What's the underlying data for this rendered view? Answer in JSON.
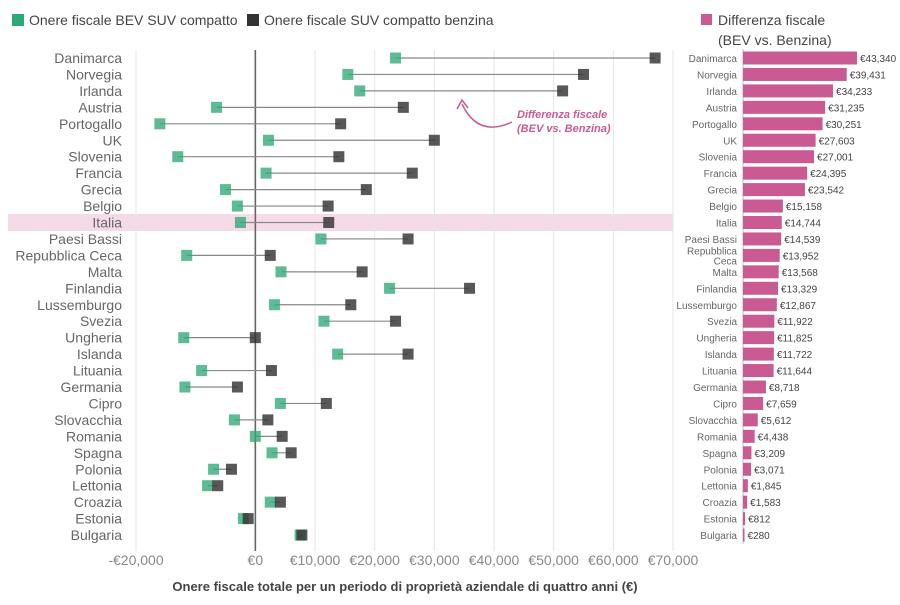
{
  "chart_data": [
    {
      "type": "dumbbell",
      "legend": {
        "bev": {
          "label": "Onere fiscale BEV SUV compatto",
          "color": "#2fa877"
        },
        "petrol": {
          "label": "Onere fiscale SUV compatto benzina",
          "color": "#333333"
        }
      },
      "xlabel": "Onere fiscale totale per un periodo di proprietà aziendale di quattro anni (€)",
      "xlim": [
        -20000,
        70000
      ],
      "xticks": [
        -20000,
        0,
        10000,
        20000,
        30000,
        40000,
        50000,
        60000,
        70000
      ],
      "xtick_labels": [
        "-€20,000",
        "€0",
        "€10,000",
        "€20,000",
        "€30,000",
        "€40,000",
        "€50,000",
        "€60,000",
        "€70,000"
      ],
      "highlight": "Italia",
      "highlight_color": "#f5dbe8",
      "annotation": {
        "line1": "Differenza fiscale",
        "line2": "(BEV vs. Benzina)",
        "color": "#c95b92"
      },
      "categories": [
        "Danimarca",
        "Norvegia",
        "Irlanda",
        "Austria",
        "Portogallo",
        "UK",
        "Slovenia",
        "Francia",
        "Grecia",
        "Belgio",
        "Italia",
        "Paesi Bassi",
        "Repubblica Ceca",
        "Malta",
        "Finlandia",
        "Lussemburgo",
        "Svezia",
        "Ungheria",
        "Islanda",
        "Lituania",
        "Germania",
        "Cipro",
        "Slovacchia",
        "Romania",
        "Spagna",
        "Polonia",
        "Lettonia",
        "Croazia",
        "Estonia",
        "Bulgaria"
      ],
      "series": [
        {
          "name": "Onere fiscale BEV SUV compatto",
          "values": [
            23500,
            15500,
            17500,
            -6500,
            -16000,
            2200,
            -13000,
            1800,
            -5000,
            -3000,
            -2500,
            11000,
            -11500,
            4300,
            22500,
            3200,
            11500,
            -12000,
            13800,
            -9000,
            -11800,
            4200,
            -3500,
            0,
            2800,
            -7000,
            -8000,
            2500,
            -2000,
            7500
          ]
        },
        {
          "name": "Onere fiscale SUV compatto benzina",
          "values": [
            67000,
            55000,
            51500,
            24800,
            14300,
            30000,
            14000,
            26300,
            18600,
            12200,
            12300,
            25600,
            2500,
            17900,
            35900,
            16000,
            23500,
            0,
            25600,
            2700,
            -3000,
            11900,
            2100,
            4500,
            6000,
            -4000,
            -6300,
            4200,
            -1200,
            7800
          ]
        }
      ]
    },
    {
      "type": "bar",
      "orientation": "horizontal",
      "title_line1": "Differenza fiscale",
      "title_line2": "(BEV vs. Benzina)",
      "color": "#c95b92",
      "categories": [
        "Danimarca",
        "Norvegia",
        "Irlanda",
        "Austria",
        "Portogallo",
        "UK",
        "Slovenia",
        "Francia",
        "Grecia",
        "Belgio",
        "Italia",
        "Paesi Bassi",
        "Repubblica Ceca",
        "Malta",
        "Finlandia",
        "Lussemburgo",
        "Svezia",
        "Ungheria",
        "Islanda",
        "Lituania",
        "Germania",
        "Cipro",
        "Slovacchia",
        "Romania",
        "Spagna",
        "Polonia",
        "Lettonia",
        "Croazia",
        "Estonia",
        "Bulgaria"
      ],
      "values": [
        43340,
        39431,
        34233,
        31235,
        30251,
        27603,
        27001,
        24395,
        23542,
        15158,
        14744,
        14539,
        13952,
        13568,
        13329,
        12867,
        11922,
        11825,
        11722,
        11644,
        8718,
        7659,
        5612,
        4438,
        3209,
        3071,
        1845,
        1583,
        812,
        280
      ],
      "value_labels": [
        "€43,340",
        "€39,431",
        "€34,233",
        "€31,235",
        "€30,251",
        "€27,603",
        "€27,001",
        "€24,395",
        "€23,542",
        "€15,158",
        "€14,744",
        "€14,539",
        "€13,952",
        "€13,568",
        "€13,329",
        "€12,867",
        "€11,922",
        "€11,825",
        "€11,722",
        "€11,644",
        "€8,718",
        "€7,659",
        "€5,612",
        "€4,438",
        "€3,209",
        "€3,071",
        "€1,845",
        "€1,583",
        "€812",
        "€280"
      ]
    }
  ]
}
